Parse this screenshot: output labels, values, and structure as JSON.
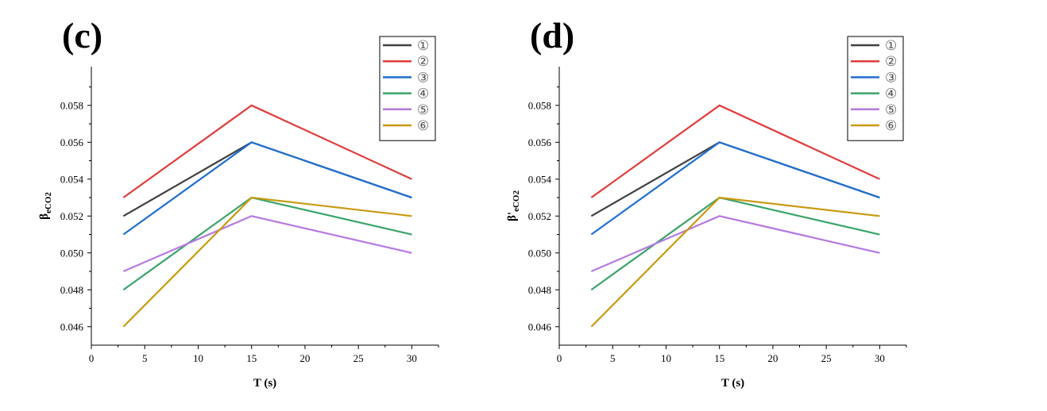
{
  "chart_data": [
    {
      "type": "line",
      "panel_label": "(c)",
      "xlabel": "T (s)",
      "ylabel_main": "β",
      "ylabel_sub": "eCO2",
      "x": [
        3,
        15,
        30
      ],
      "xlim": [
        0,
        32.5
      ],
      "ylim": [
        0.045,
        0.0601
      ],
      "xticks": [
        "0",
        "5",
        "10",
        "15",
        "20",
        "25",
        "30"
      ],
      "yticks": [
        "0.046",
        "0.048",
        "0.050",
        "0.052",
        "0.054",
        "0.056",
        "0.058"
      ],
      "legend_position": "top-right",
      "series": [
        {
          "name": "①",
          "color": "#404040",
          "values": [
            0.052,
            0.056,
            0.053
          ]
        },
        {
          "name": "②",
          "color": "#e03c3c",
          "values": [
            0.053,
            0.058,
            0.054
          ]
        },
        {
          "name": "③",
          "color": "#1f6fd1",
          "values": [
            0.051,
            0.056,
            0.053
          ]
        },
        {
          "name": "④",
          "color": "#3aa36a",
          "values": [
            0.048,
            0.053,
            0.051
          ]
        },
        {
          "name": "⑤",
          "color": "#b679e0",
          "values": [
            0.049,
            0.052,
            0.05
          ]
        },
        {
          "name": "⑥",
          "color": "#c99a10",
          "values": [
            0.046,
            0.053,
            0.052
          ]
        }
      ]
    },
    {
      "type": "line",
      "panel_label": "(d)",
      "xlabel": "T (s)",
      "ylabel_main": "β'",
      "ylabel_sub": "eCO2",
      "x": [
        3,
        15,
        30
      ],
      "xlim": [
        0,
        32.5
      ],
      "ylim": [
        0.045,
        0.0601
      ],
      "xticks": [
        "0",
        "5",
        "10",
        "15",
        "20",
        "25",
        "30"
      ],
      "yticks": [
        "0.046",
        "0.048",
        "0.050",
        "0.052",
        "0.054",
        "0.056",
        "0.058"
      ],
      "legend_position": "top-right",
      "series": [
        {
          "name": "①",
          "color": "#404040",
          "values": [
            0.052,
            0.056,
            0.053
          ]
        },
        {
          "name": "②",
          "color": "#e03c3c",
          "values": [
            0.053,
            0.058,
            0.054
          ]
        },
        {
          "name": "③",
          "color": "#1f6fd1",
          "values": [
            0.051,
            0.056,
            0.053
          ]
        },
        {
          "name": "④",
          "color": "#3aa36a",
          "values": [
            0.048,
            0.053,
            0.051
          ]
        },
        {
          "name": "⑤",
          "color": "#b679e0",
          "values": [
            0.049,
            0.052,
            0.05
          ]
        },
        {
          "name": "⑥",
          "color": "#c99a10",
          "values": [
            0.046,
            0.053,
            0.052
          ]
        }
      ]
    }
  ]
}
